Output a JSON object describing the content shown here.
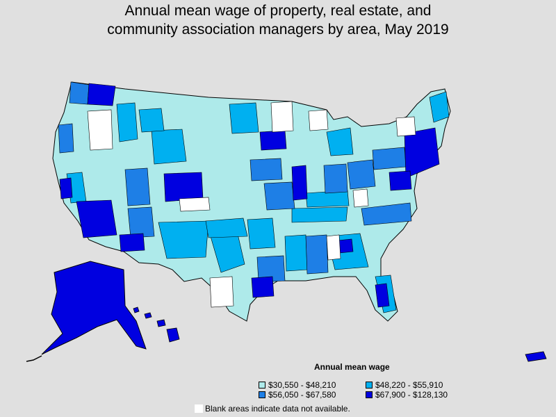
{
  "title": {
    "line1": "Annual mean wage of property, real estate, and",
    "line2": "community association managers by area, May 2019"
  },
  "legend": {
    "title": "Annual mean wage",
    "items": [
      {
        "label": "$30,550 - $48,210",
        "color": "#aeeaea"
      },
      {
        "label": "$48,220 - $55,910",
        "color": "#00b0f0"
      },
      {
        "label": "$56,050 - $67,580",
        "color": "#1e7fe6"
      },
      {
        "label": "$67,900 - $128,130",
        "color": "#0000e0"
      }
    ]
  },
  "note": "Blank areas indicate data not available.",
  "colors": {
    "background": "#e0e0e0",
    "no_data": "#ffffff",
    "border": "#000000"
  }
}
